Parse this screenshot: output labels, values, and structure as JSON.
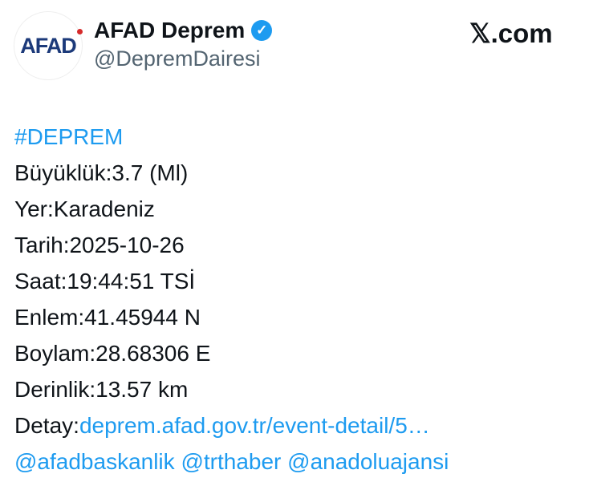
{
  "author": {
    "logo_text": "AFAD",
    "name": "AFAD Deprem",
    "verified": true,
    "handle": "@DepremDairesi"
  },
  "brand": "𝕏.com",
  "tweet": {
    "hashtag": "#DEPREM",
    "lines": [
      "Büyüklük:3.7 (Ml)",
      "Yer:Karadeniz",
      "Tarih:2025-10-26",
      "Saat:19:44:51 TSİ",
      "Enlem:41.45944 N",
      "Boylam:28.68306 E",
      "Derinlik:13.57 km"
    ],
    "detail_label": "Detay:",
    "detail_link": "deprem.afad.gov.tr/event-detail/5…",
    "mentions": [
      "@afadbaskanlik",
      "@trthaber",
      "@anadoluajansi"
    ]
  },
  "colors": {
    "link": "#1d9bf0",
    "logo": "#1c3a7a"
  }
}
